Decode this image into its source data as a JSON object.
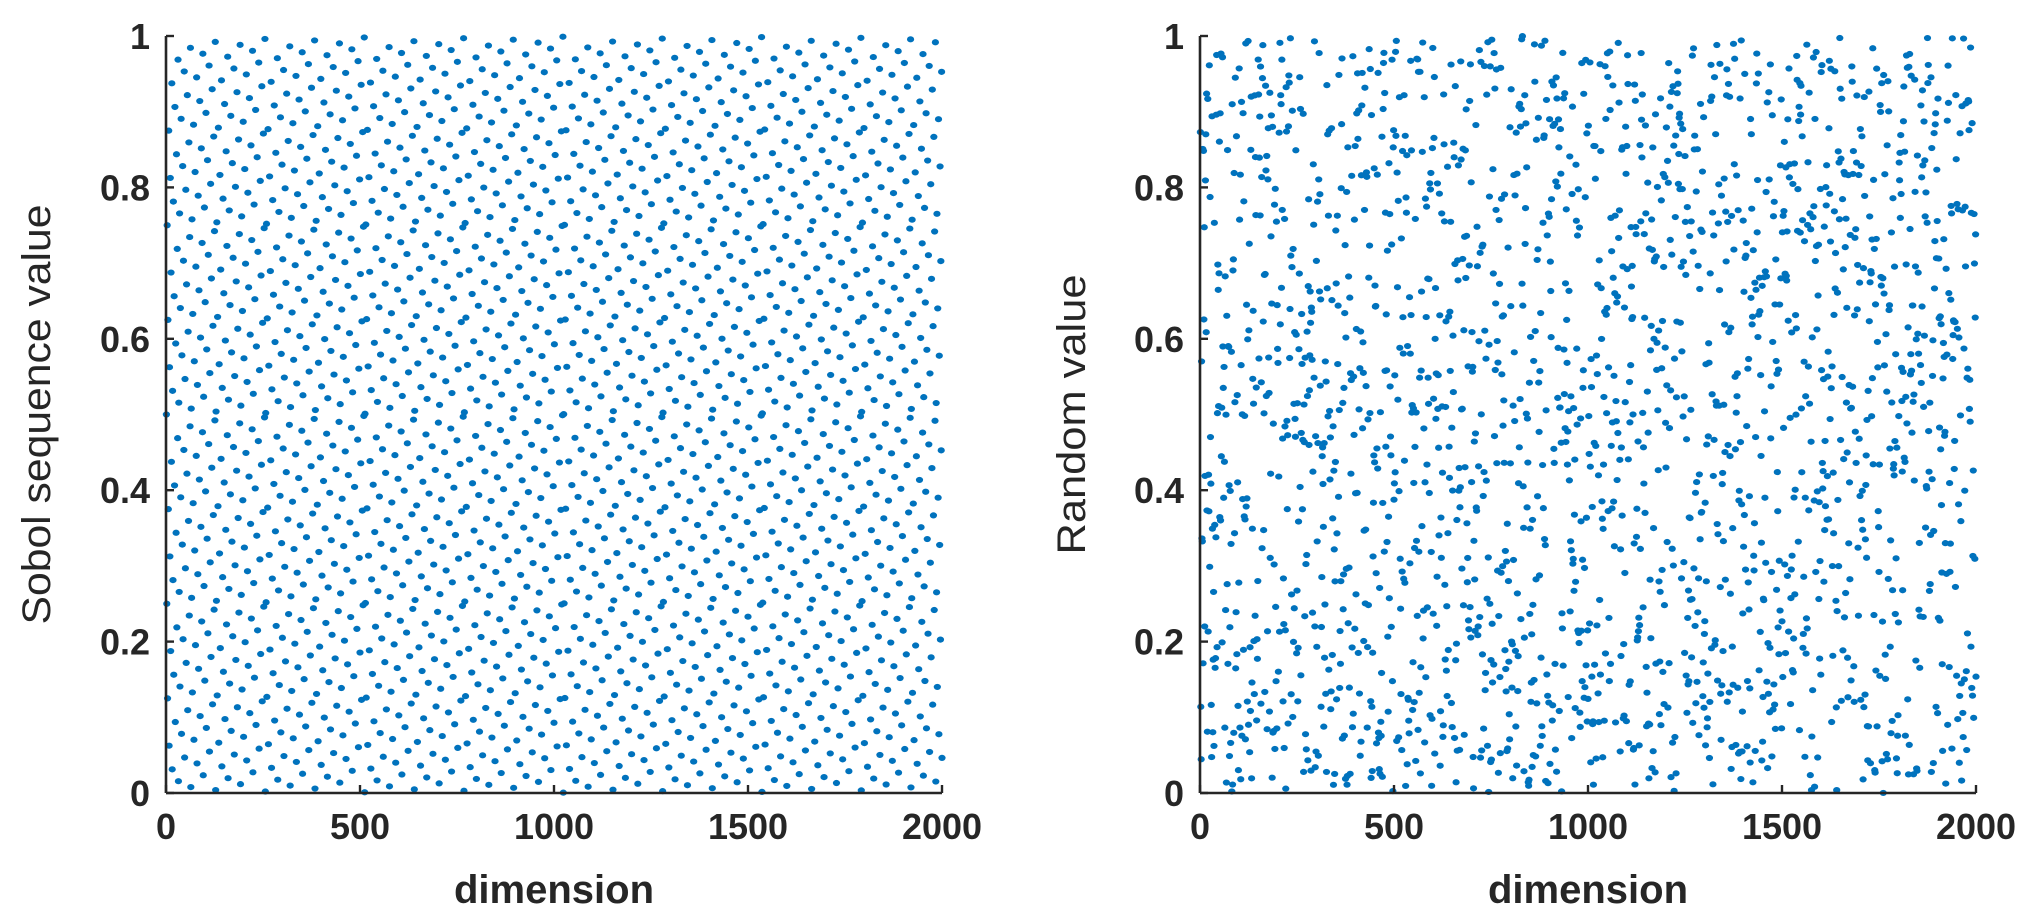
{
  "chart_data": [
    {
      "type": "scatter",
      "title": "",
      "xlabel": "dimension",
      "ylabel": "Sobol sequence value",
      "xlim": [
        0,
        2000
      ],
      "ylim": [
        0,
        1
      ],
      "xticks": [
        0,
        500,
        1000,
        1500,
        2000
      ],
      "yticks": [
        0,
        0.2,
        0.4,
        0.6,
        0.8,
        1
      ],
      "xtick_labels": [
        "0",
        "500",
        "1000",
        "1500",
        "2000"
      ],
      "ytick_labels": [
        "0",
        "0.2",
        "0.4",
        "0.6",
        "0.8",
        "1"
      ],
      "grid": false,
      "legend": "none",
      "marker_color": "#0072BD",
      "n_points": 2000,
      "generator": "sobol-dimension-1",
      "description_of_points": "y(i) = i-th element of the first-dimension Sobol (van der Corput base-2) sequence, for dimension i = 1..2000"
    },
    {
      "type": "scatter",
      "title": "",
      "xlabel": "dimension",
      "ylabel": "Random value",
      "xlim": [
        0,
        2000
      ],
      "ylim": [
        0,
        1
      ],
      "xticks": [
        0,
        500,
        1000,
        1500,
        2000
      ],
      "yticks": [
        0,
        0.2,
        0.4,
        0.6,
        0.8,
        1
      ],
      "xtick_labels": [
        "0",
        "500",
        "1000",
        "1500",
        "2000"
      ],
      "ytick_labels": [
        "0",
        "0.2",
        "0.4",
        "0.6",
        "0.8",
        "1"
      ],
      "grid": false,
      "legend": "none",
      "marker_color": "#0072BD",
      "n_points": 2000,
      "generator": "uniform-random",
      "description_of_points": "y(i) = independent uniform random value in [0,1] for dimension i = 1..2000"
    }
  ]
}
